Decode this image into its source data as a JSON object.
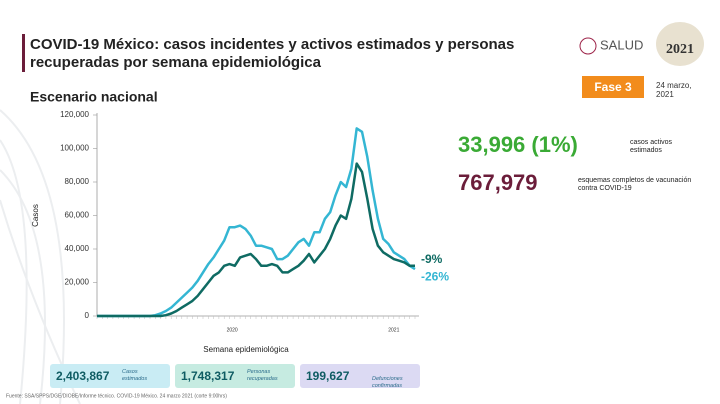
{
  "slide": {
    "title": "COVID-19 México: casos incidentes y activos estimados y personas recuperadas por semana epidemiológica",
    "subtitle": "Escenario nacional",
    "logo_text": "SALUD",
    "logo_year": "2021",
    "phase": "Fase 3",
    "date": "24 marzo, 2021",
    "stats": [
      {
        "value": "33,996 (1%)",
        "label": "casos activos estimados",
        "color": "#3aaa35"
      },
      {
        "value": "767,979",
        "label": "esquemas completos de vacunación contra COVID-19",
        "color": "#6b1d3a"
      }
    ],
    "boxes": [
      {
        "value": "2,403,867",
        "label": "Casos estimados",
        "color": "#c9ecf4"
      },
      {
        "value": "1,748,317",
        "label": "Personas recuperadas",
        "color": "#c6ebe1"
      },
      {
        "value": "199,627",
        "label": "Defunciones confirmadas",
        "color": "#dcdaf3"
      }
    ],
    "source": "Fuente: SSA/SPPS/DGE/DIOBE/Informe técnico. COVID-19 México. 24 marzo 2021 (corte 9:00hrs)"
  },
  "chart_data": {
    "type": "line",
    "xlabel": "Semana epidemiológica",
    "ylabel": "Casos",
    "categories": [
      null,
      null,
      null,
      null,
      null,
      null,
      null,
      null,
      null,
      null,
      null,
      null,
      null,
      null,
      null,
      null,
      null,
      null,
      null,
      null,
      null,
      null,
      null,
      null,
      null,
      null,
      null,
      null,
      null,
      null,
      null,
      null,
      null,
      null,
      null,
      null,
      null,
      null,
      null,
      null,
      null,
      null,
      null,
      null,
      null,
      null,
      null,
      null,
      null,
      null,
      null,
      null,
      null,
      null,
      null,
      null,
      null,
      null,
      null,
      null,
      null
    ],
    "x_group_labels": [
      "2020",
      "2021"
    ],
    "series": [
      {
        "color": "#34b6d3",
        "values": [
          0,
          0,
          0,
          0,
          0,
          0,
          0,
          0,
          0,
          0,
          0,
          500,
          1500,
          3000,
          5000,
          8000,
          11000,
          14000,
          17000,
          21000,
          26000,
          31000,
          35000,
          40000,
          45000,
          53000,
          53000,
          54000,
          52000,
          48000,
          42000,
          42000,
          41000,
          40000,
          34000,
          34000,
          36000,
          40000,
          44000,
          46000,
          42000,
          50000,
          50000,
          58000,
          62000,
          72000,
          80000,
          77000,
          88000,
          112000,
          110000,
          95000,
          75000,
          58000,
          46000,
          43000,
          38000,
          36000,
          34000,
          30000,
          28000
        ]
      },
      {
        "color": "#0f6b63",
        "values": [
          0,
          0,
          0,
          0,
          0,
          0,
          0,
          0,
          0,
          0,
          0,
          0,
          0,
          500,
          1500,
          3000,
          5000,
          7000,
          9000,
          12000,
          16000,
          20000,
          24000,
          26000,
          30000,
          31000,
          30000,
          35000,
          36000,
          37000,
          34000,
          30000,
          30000,
          31000,
          30000,
          26000,
          26000,
          28000,
          30000,
          33000,
          37000,
          32000,
          36000,
          40000,
          46000,
          54000,
          60000,
          58000,
          70000,
          91000,
          86000,
          70000,
          52000,
          42000,
          38000,
          36000,
          34000,
          33000,
          32000,
          30000,
          30000
        ]
      }
    ],
    "annotations": [
      "-9%",
      "-26%"
    ],
    "ylim": [
      0,
      120000
    ],
    "yticks": [
      0,
      {
        "value": 20000,
        "label": "20,000"
      },
      {
        "value": 40000,
        "label": "40,000"
      },
      {
        "value": 60000,
        "label": "60,000"
      },
      {
        "value": 80000,
        "label": "80,000"
      },
      {
        "value": 100000,
        "label": "100,000"
      },
      {
        "value": 120000,
        "label": "120,000"
      }
    ]
  }
}
